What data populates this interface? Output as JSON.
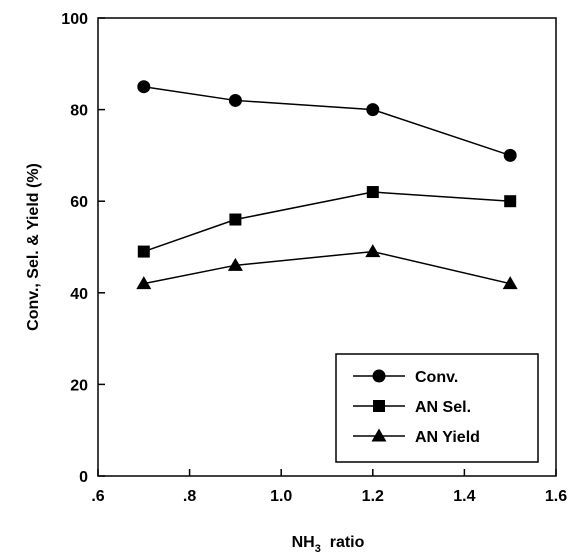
{
  "chart_data": {
    "type": "line",
    "title": "",
    "xlabel": {
      "prefix": "NH",
      "subscript": "3",
      "suffix": "  ratio"
    },
    "ylabel": "Conv., Sel. & Yield (%)",
    "xlim": [
      0.6,
      1.6
    ],
    "ylim": [
      0,
      100
    ],
    "x_ticks": [
      ".6",
      ".8",
      "1.0",
      "1.2",
      "1.4",
      "1.6"
    ],
    "y_ticks": [
      "0",
      "20",
      "40",
      "60",
      "80",
      "100"
    ],
    "x": [
      0.7,
      0.9,
      1.2,
      1.5
    ],
    "series": [
      {
        "name": "Conv.",
        "marker": "circle",
        "values": [
          85,
          82,
          80,
          70
        ]
      },
      {
        "name": "AN Sel.",
        "marker": "square",
        "values": [
          49,
          56,
          62,
          60
        ]
      },
      {
        "name": "AN Yield",
        "marker": "triangle",
        "values": [
          42,
          46,
          49,
          42
        ]
      }
    ],
    "legend_position": "bottom-right",
    "grid": false,
    "colors": {
      "line": "#000000",
      "marker": "#000000",
      "background": "#ffffff"
    }
  }
}
